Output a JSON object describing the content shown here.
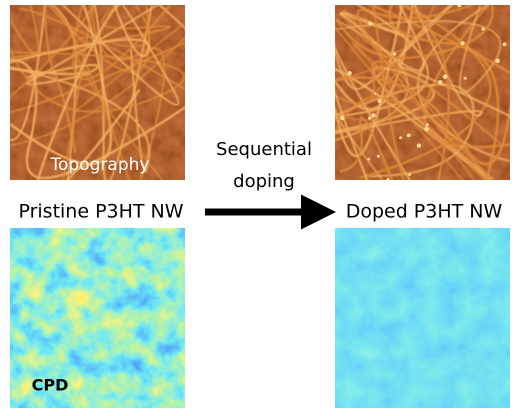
{
  "panels": {
    "topography_label": "Topography",
    "cpd_label": "CPD"
  },
  "labels": {
    "pristine": "Pristine P3HT NW",
    "doped": "Doped P3HT NW"
  },
  "arrow": {
    "lines": [
      "Sequential",
      "doping"
    ]
  }
}
